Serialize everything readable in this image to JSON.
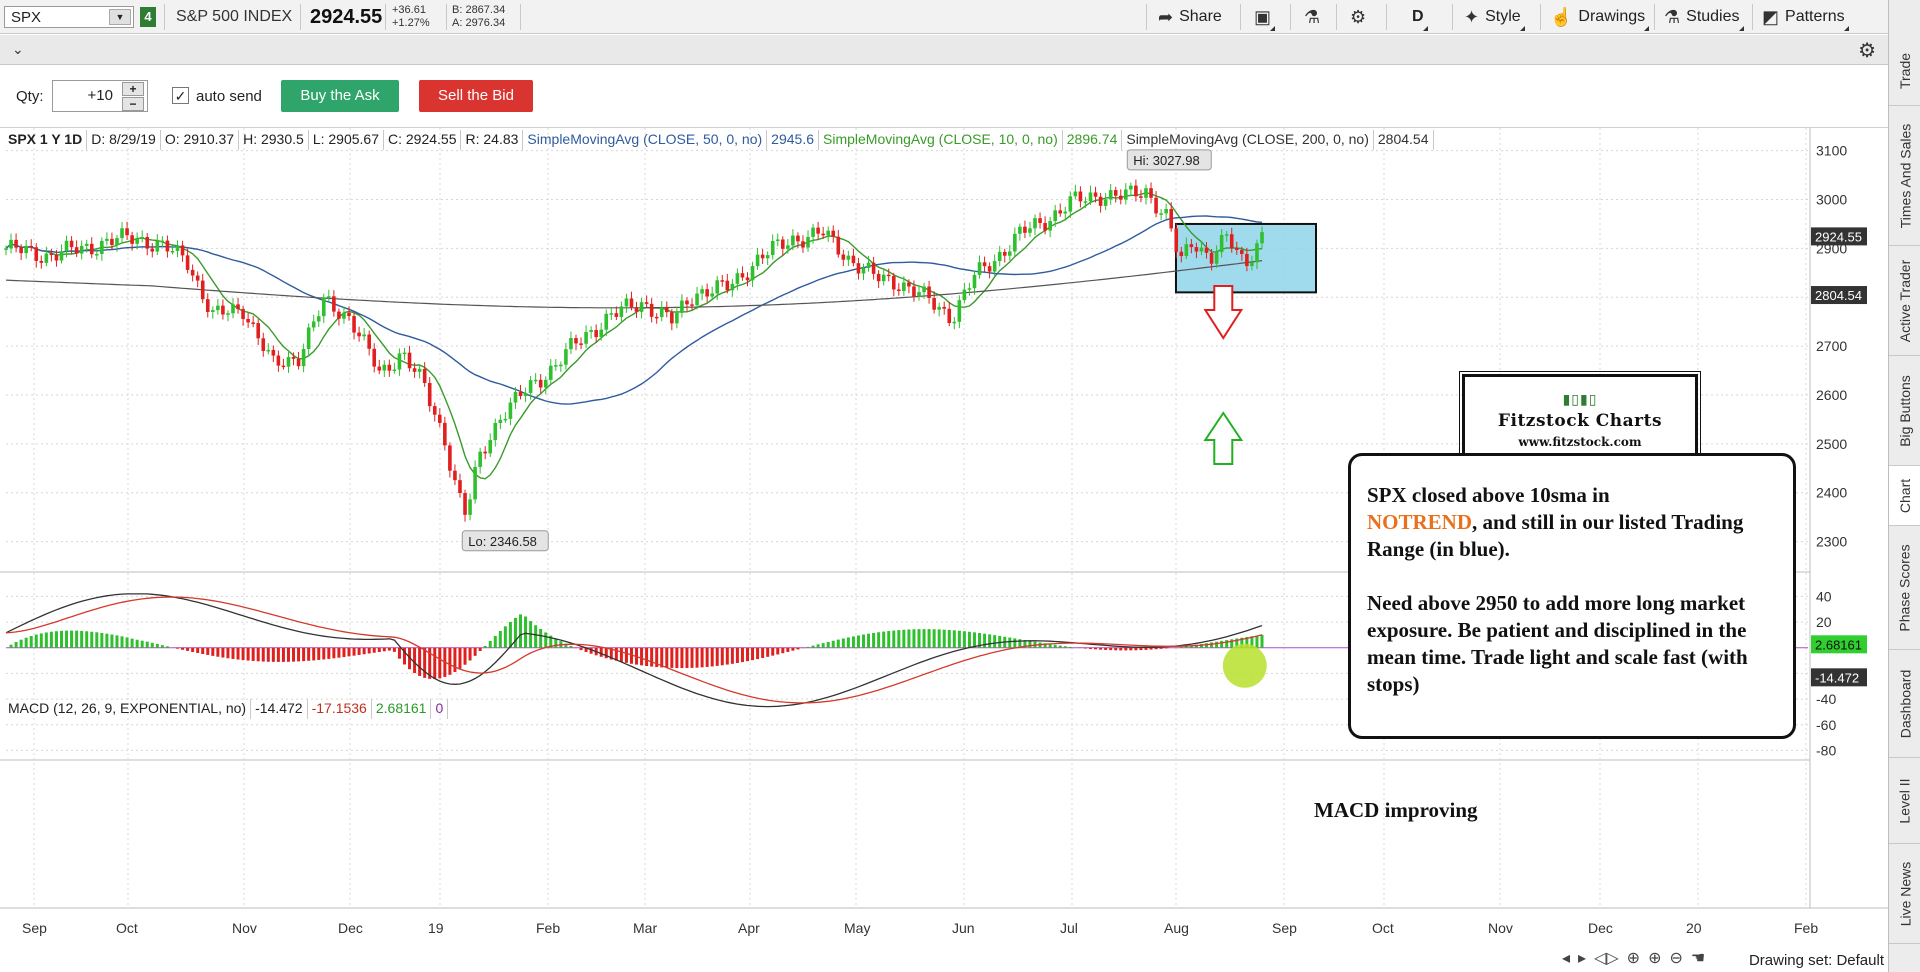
{
  "toolbar": {
    "symbol": "SPX",
    "link_badge": "4",
    "instrument_name": "S&P 500 INDEX",
    "last_price": "2924.55",
    "change": "+36.61",
    "change_pct": "+1.27%",
    "bid": "B: 2867.34",
    "ask": "A: 2976.34",
    "share_label": "Share",
    "aggregation": "D",
    "style_label": "Style",
    "drawings_label": "Drawings",
    "studies_label": "Studies",
    "patterns_label": "Patterns"
  },
  "order_bar": {
    "qty_label": "Qty:",
    "qty_value": "+10",
    "auto_send_label": "auto send",
    "buy_label": "Buy the Ask",
    "sell_label": "Sell the Bid"
  },
  "header": {
    "symbol_period": "SPX 1 Y 1D",
    "date": "D: 8/29/19",
    "open": "O: 2910.37",
    "high": "H: 2930.5",
    "low": "L: 2905.67",
    "close": "C: 2924.55",
    "range": "R: 24.83",
    "sma50_label": "SimpleMovingAvg (CLOSE, 50, 0, no)",
    "sma50_value": "2945.6",
    "sma10_label": "SimpleMovingAvg (CLOSE, 10, 0, no)",
    "sma10_value": "2896.74",
    "sma200_label": "SimpleMovingAvg (CLOSE, 200, 0, no)",
    "sma200_value": "2804.54"
  },
  "macd_header": {
    "label": "MACD (12, 26, 9, EXPONENTIAL, no)",
    "value": "-14.472",
    "avg": "-17.1536",
    "diff": "2.68161",
    "zero": "0"
  },
  "price_axis": {
    "ticks": [
      "3100",
      "3000",
      "2900",
      "2800",
      "2700",
      "2600",
      "2500",
      "2400",
      "2300"
    ],
    "last_badge": "2924.55",
    "sma200_badge": "2804.54"
  },
  "macd_axis": {
    "ticks": [
      "40",
      "20",
      "-20",
      "-40",
      "-60",
      "-80"
    ],
    "diff_badge": "2.68161",
    "value_badge": "-14.472"
  },
  "time_axis": [
    "Sep",
    "Oct",
    "Nov",
    "Dec",
    "19",
    "Feb",
    "Mar",
    "Apr",
    "May",
    "Jun",
    "Jul",
    "Aug",
    "Sep",
    "Oct",
    "Nov",
    "Dec",
    "20",
    "Feb"
  ],
  "bubbles": {
    "hi": "Hi: 3027.98",
    "lo": "Lo: 2346.58"
  },
  "logo": {
    "title": "Fitzstock Charts",
    "url": "www.fitzstock.com"
  },
  "note": {
    "line1": "SPX closed above 10sma in",
    "highlight": "NOTREND",
    "line2": ", and still in our listed Trading Range (in blue).",
    "line3": "Need above 2950 to add more long market exposure.   Be patient and disciplined in the mean time.  Trade light and scale fast (with stops)"
  },
  "macd_note": "MACD improving",
  "status": {
    "drawing_set": "Drawing set: Default"
  },
  "side_tabs": [
    "Trade",
    "Times And Sales",
    "Active Trader",
    "Big Buttons",
    "Chart",
    "Phase Scores",
    "Dashboard",
    "Level II",
    "Live News"
  ],
  "colors": {
    "up": "#2fbf2f",
    "down": "#e0201f",
    "sma10": "#3a9a2a",
    "sma50": "#2f5b9f",
    "sma200": "#555555",
    "range_box": "#8fd3ea",
    "macd_avg": "#d43a2a",
    "macd_value": "#333333"
  },
  "chart_data": {
    "type": "line",
    "title": "SPX 1 Y 1D",
    "series": [
      {
        "name": "SimpleMovingAvg (CLOSE, 50, 0, no)"
      },
      {
        "name": "SimpleMovingAvg (CLOSE, 10, 0, no)"
      },
      {
        "name": "SimpleMovingAvg (CLOSE, 200, 0, no)"
      }
    ],
    "price_range": [
      2250,
      3130
    ],
    "macd_range": [
      -82,
      45
    ],
    "high": 3027.98,
    "low": 2346.58,
    "close_series": [
      {
        "t": 0.0,
        "v": 2900
      },
      {
        "t": 1.0,
        "v": 2885
      },
      {
        "t": 2.0,
        "v": 2905
      },
      {
        "t": 3.0,
        "v": 2925
      },
      {
        "t": 4.2,
        "v": 2880
      },
      {
        "t": 4.8,
        "v": 2760
      },
      {
        "t": 5.5,
        "v": 2780
      },
      {
        "t": 6.2,
        "v": 2660
      },
      {
        "t": 6.8,
        "v": 2680
      },
      {
        "t": 7.4,
        "v": 2790
      },
      {
        "t": 8.0,
        "v": 2760
      },
      {
        "t": 8.7,
        "v": 2640
      },
      {
        "t": 9.2,
        "v": 2690
      },
      {
        "t": 9.7,
        "v": 2620
      },
      {
        "t": 10.2,
        "v": 2510
      },
      {
        "t": 10.5,
        "v": 2400
      },
      {
        "t": 10.7,
        "v": 2351
      },
      {
        "t": 11.0,
        "v": 2470
      },
      {
        "t": 11.5,
        "v": 2560
      },
      {
        "t": 12.0,
        "v": 2600
      },
      {
        "t": 12.5,
        "v": 2640
      },
      {
        "t": 13.2,
        "v": 2700
      },
      {
        "t": 14.0,
        "v": 2760
      },
      {
        "t": 14.8,
        "v": 2790
      },
      {
        "t": 15.5,
        "v": 2750
      },
      {
        "t": 16.0,
        "v": 2810
      },
      {
        "t": 16.8,
        "v": 2820
      },
      {
        "t": 17.5,
        "v": 2880
      },
      {
        "t": 18.3,
        "v": 2920
      },
      {
        "t": 19.0,
        "v": 2930
      },
      {
        "t": 19.6,
        "v": 2880
      },
      {
        "t": 20.2,
        "v": 2840
      },
      {
        "t": 20.8,
        "v": 2830
      },
      {
        "t": 21.5,
        "v": 2790
      },
      {
        "t": 22.0,
        "v": 2760
      },
      {
        "t": 22.5,
        "v": 2840
      },
      {
        "t": 23.0,
        "v": 2880
      },
      {
        "t": 23.6,
        "v": 2930
      },
      {
        "t": 24.2,
        "v": 2960
      },
      {
        "t": 24.8,
        "v": 2995
      },
      {
        "t": 25.4,
        "v": 3010
      },
      {
        "t": 26.0,
        "v": 3005
      },
      {
        "t": 26.5,
        "v": 3020
      },
      {
        "t": 27.0,
        "v": 2960
      },
      {
        "t": 27.3,
        "v": 2870
      },
      {
        "t": 27.6,
        "v": 2920
      },
      {
        "t": 28.0,
        "v": 2880
      },
      {
        "t": 28.4,
        "v": 2920
      },
      {
        "t": 28.8,
        "v": 2870
      },
      {
        "t": 29.2,
        "v": 2925
      }
    ],
    "range_box_price": [
      2810,
      2950
    ]
  }
}
